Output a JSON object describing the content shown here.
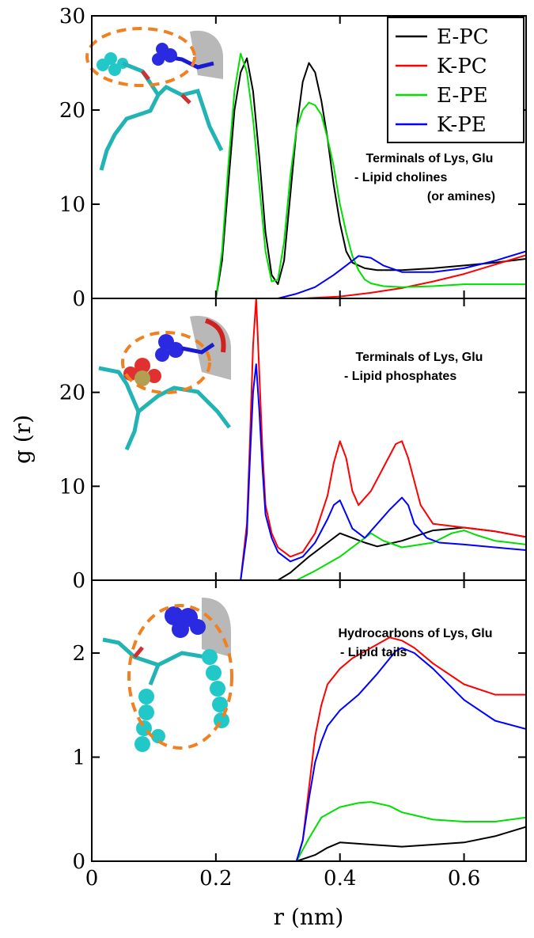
{
  "chart_data": {
    "type": "line",
    "xlabel": "r (nm)",
    "ylabel": "g (r)",
    "xlim": [
      0,
      0.7
    ],
    "x_ticks": [
      "0",
      "0.2",
      "0.4",
      "0.6"
    ],
    "x_tick_values": [
      0,
      0.2,
      0.4,
      0.6
    ],
    "legend": {
      "placement": "top-right",
      "entries": [
        {
          "name": "E-PC",
          "color": "#000000"
        },
        {
          "name": "K-PC",
          "color": "#ff0000"
        },
        {
          "name": "E-PE",
          "color": "#00e000"
        },
        {
          "name": "K-PE",
          "color": "#0000ff"
        }
      ]
    },
    "panels": [
      {
        "annotation": [
          "Terminals of Lys, Glu",
          "- Lipid cholines",
          "(or amines)"
        ],
        "ylim": [
          0,
          30
        ],
        "y_ticks": [
          "0",
          "10",
          "20",
          "30"
        ],
        "y_tick_values": [
          0,
          10,
          20,
          30
        ],
        "series": [
          {
            "name": "E-PC",
            "color": "#000000",
            "x": [
              0.2,
              0.21,
              0.22,
              0.23,
              0.24,
              0.25,
              0.26,
              0.27,
              0.28,
              0.29,
              0.3,
              0.31,
              0.32,
              0.33,
              0.34,
              0.35,
              0.36,
              0.37,
              0.38,
              0.39,
              0.4,
              0.41,
              0.42,
              0.44,
              0.46,
              0.5,
              0.55,
              0.6,
              0.65,
              0.7
            ],
            "y": [
              0,
              4,
              12,
              20,
              24,
              25.5,
              22,
              15,
              7,
              2.5,
              1.5,
              4,
              11,
              18,
              23,
              25,
              24,
              21,
              17,
              12,
              8,
              5,
              3.8,
              3.2,
              3,
              3,
              3.2,
              3.5,
              3.8,
              4.2
            ]
          },
          {
            "name": "K-PC",
            "color": "#ff0000",
            "x": [
              0.34,
              0.4,
              0.45,
              0.5,
              0.55,
              0.6,
              0.65,
              0.7
            ],
            "y": [
              0,
              0.2,
              0.6,
              1.1,
              1.8,
              2.6,
              3.6,
              4.6
            ]
          },
          {
            "name": "E-PE",
            "color": "#00e000",
            "x": [
              0.2,
              0.21,
              0.22,
              0.23,
              0.24,
              0.25,
              0.26,
              0.27,
              0.28,
              0.29,
              0.3,
              0.31,
              0.32,
              0.33,
              0.34,
              0.35,
              0.36,
              0.37,
              0.38,
              0.39,
              0.4,
              0.41,
              0.42,
              0.43,
              0.44,
              0.45,
              0.47,
              0.5,
              0.55,
              0.6,
              0.65,
              0.7
            ],
            "y": [
              0,
              5,
              14,
              22,
              26,
              24,
              19,
              12,
              5,
              1.8,
              2,
              6,
              13,
              18,
              20,
              20.8,
              20.5,
              19.5,
              17,
              14,
              10,
              7,
              4.5,
              3,
              2,
              1.6,
              1.3,
              1.2,
              1.3,
              1.5,
              1.5,
              1.5
            ]
          },
          {
            "name": "K-PE",
            "color": "#0000ff",
            "x": [
              0.3,
              0.33,
              0.36,
              0.39,
              0.41,
              0.43,
              0.45,
              0.47,
              0.5,
              0.55,
              0.6,
              0.65,
              0.7
            ],
            "y": [
              0,
              0.5,
              1.2,
              2.5,
              3.5,
              4.5,
              4.3,
              3.5,
              2.8,
              2.8,
              3.2,
              4,
              5
            ]
          }
        ]
      },
      {
        "annotation": [
          "Terminals of Lys, Glu",
          "- Lipid phosphates"
        ],
        "ylim": [
          0,
          30
        ],
        "y_ticks": [
          "0",
          "10",
          "20"
        ],
        "y_tick_values": [
          0,
          10,
          20
        ],
        "series": [
          {
            "name": "E-PC",
            "color": "#000000",
            "x": [
              0.3,
              0.32,
              0.35,
              0.38,
              0.4,
              0.42,
              0.44,
              0.46,
              0.5,
              0.55,
              0.6,
              0.65,
              0.7
            ],
            "y": [
              0,
              0.8,
              2.5,
              4,
              5,
              4.5,
              4,
              3.6,
              4.2,
              5.3,
              5.6,
              5.2,
              4.6
            ]
          },
          {
            "name": "K-PC",
            "color": "#ff0000",
            "x": [
              0.24,
              0.25,
              0.255,
              0.26,
              0.265,
              0.27,
              0.275,
              0.28,
              0.29,
              0.3,
              0.32,
              0.34,
              0.36,
              0.38,
              0.39,
              0.4,
              0.41,
              0.42,
              0.43,
              0.45,
              0.47,
              0.49,
              0.5,
              0.51,
              0.53,
              0.55,
              0.6,
              0.65,
              0.7
            ],
            "y": [
              0,
              6,
              15,
              25,
              30,
              22,
              14,
              8,
              5,
              3.5,
              2.5,
              3,
              5,
              9,
              12.5,
              14.8,
              13,
              9.5,
              8,
              9.5,
              12,
              14.5,
              14.8,
              13,
              8,
              6,
              5.6,
              5.2,
              4.6
            ]
          },
          {
            "name": "E-PE",
            "color": "#00e000",
            "x": [
              0.33,
              0.36,
              0.4,
              0.43,
              0.45,
              0.47,
              0.5,
              0.55,
              0.58,
              0.6,
              0.62,
              0.65,
              0.7
            ],
            "y": [
              0,
              1,
              2.5,
              4,
              5,
              4.2,
              3.5,
              4,
              5,
              5.3,
              4.8,
              4.2,
              3.8
            ]
          },
          {
            "name": "K-PE",
            "color": "#0000ff",
            "x": [
              0.24,
              0.25,
              0.255,
              0.26,
              0.265,
              0.27,
              0.275,
              0.28,
              0.29,
              0.3,
              0.32,
              0.34,
              0.36,
              0.38,
              0.39,
              0.4,
              0.41,
              0.42,
              0.44,
              0.46,
              0.48,
              0.5,
              0.51,
              0.52,
              0.54,
              0.56,
              0.6,
              0.65,
              0.7
            ],
            "y": [
              0,
              5,
              13,
              20,
              23,
              18,
              12,
              7,
              4.5,
              3,
              2,
              2.5,
              4,
              6.5,
              8,
              8.5,
              7,
              5.5,
              4.5,
              6,
              7.5,
              8.8,
              8,
              6,
              4.5,
              4,
              3.8,
              3.5,
              3.2
            ]
          }
        ]
      },
      {
        "annotation": [
          "Hydrocarbons of Lys, Glu",
          "- Lipid tails"
        ],
        "ylim": [
          0,
          2.7
        ],
        "y_ticks": [
          "0",
          "1",
          "2"
        ],
        "y_tick_values": [
          0,
          1,
          2
        ],
        "series": [
          {
            "name": "E-PC",
            "color": "#000000",
            "x": [
              0.33,
              0.36,
              0.38,
              0.4,
              0.45,
              0.5,
              0.55,
              0.6,
              0.65,
              0.7
            ],
            "y": [
              0,
              0.06,
              0.13,
              0.18,
              0.16,
              0.14,
              0.16,
              0.18,
              0.24,
              0.33
            ]
          },
          {
            "name": "K-PC",
            "color": "#ff0000",
            "x": [
              0.33,
              0.34,
              0.35,
              0.36,
              0.37,
              0.38,
              0.4,
              0.42,
              0.45,
              0.48,
              0.5,
              0.52,
              0.55,
              0.6,
              0.65,
              0.7
            ],
            "y": [
              0,
              0.2,
              0.7,
              1.2,
              1.5,
              1.7,
              1.85,
              1.95,
              2.05,
              2.15,
              2.12,
              2.05,
              1.9,
              1.7,
              1.6,
              1.6
            ]
          },
          {
            "name": "E-PE",
            "color": "#00e000",
            "x": [
              0.33,
              0.35,
              0.37,
              0.4,
              0.43,
              0.45,
              0.48,
              0.5,
              0.55,
              0.6,
              0.65,
              0.7
            ],
            "y": [
              0,
              0.22,
              0.42,
              0.52,
              0.56,
              0.57,
              0.53,
              0.47,
              0.4,
              0.38,
              0.38,
              0.42
            ]
          },
          {
            "name": "K-PE",
            "color": "#0000ff",
            "x": [
              0.33,
              0.34,
              0.35,
              0.36,
              0.37,
              0.38,
              0.4,
              0.43,
              0.46,
              0.49,
              0.5,
              0.52,
              0.55,
              0.6,
              0.65,
              0.7
            ],
            "y": [
              0,
              0.2,
              0.6,
              0.95,
              1.15,
              1.3,
              1.45,
              1.6,
              1.8,
              2.02,
              2.05,
              2,
              1.85,
              1.55,
              1.35,
              1.27
            ]
          }
        ]
      }
    ]
  }
}
